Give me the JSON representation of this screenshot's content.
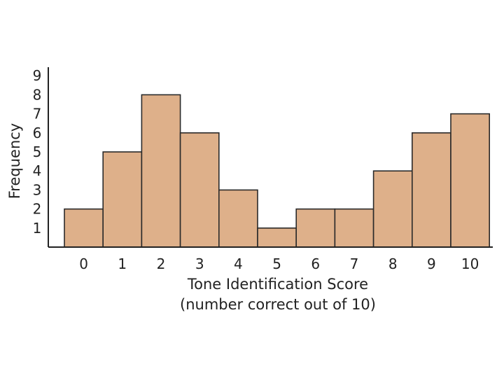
{
  "chart_data": {
    "type": "bar",
    "categories": [
      "0",
      "1",
      "2",
      "3",
      "4",
      "5",
      "6",
      "7",
      "8",
      "9",
      "10"
    ],
    "values": [
      2,
      5,
      8,
      6,
      3,
      1,
      2,
      2,
      4,
      6,
      7
    ],
    "xlabel": "Tone Identification Score",
    "xlabel_sub": "(number correct out of 10)",
    "ylabel": "Frequency",
    "yticks": [
      "1",
      "2",
      "3",
      "4",
      "5",
      "6",
      "7",
      "8",
      "9"
    ],
    "ylim": [
      0,
      9.5
    ],
    "grid": false,
    "legend": "none",
    "bar_color": "#deb08a",
    "edge_color": "#2a2a2a"
  }
}
